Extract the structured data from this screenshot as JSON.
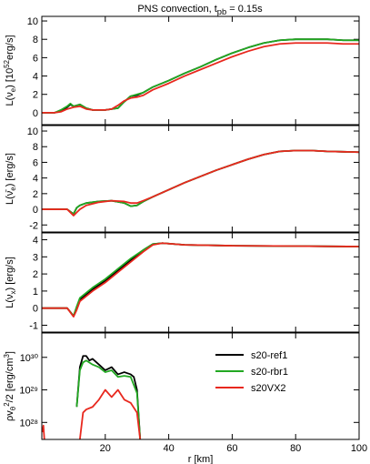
{
  "chart_data": [
    {
      "type": "line",
      "title": [
        {
          "text": "PNS convection, t"
        },
        {
          "text": "pb",
          "sub": true
        },
        {
          "text": " = 0.15s"
        }
      ],
      "ylabel": [
        {
          "text": "L(ν"
        },
        {
          "text": "e",
          "sub": true
        },
        {
          "text": ") [10"
        },
        {
          "text": "52",
          "sup": true
        },
        {
          "text": "erg/s]"
        }
      ],
      "xlim": [
        0,
        100
      ],
      "xticks": [
        20,
        40,
        60,
        80,
        100
      ],
      "ylim": [
        -1.3,
        10.5
      ],
      "yticks": [
        0,
        2,
        4,
        6,
        8,
        10
      ],
      "series": [
        {
          "color": "#000000",
          "x": [
            0,
            4,
            6,
            8,
            9,
            10,
            12,
            14,
            16,
            20,
            24,
            26,
            28,
            30,
            32,
            35,
            40,
            45,
            50,
            55,
            60,
            65,
            70,
            75,
            80,
            85,
            90,
            95,
            100
          ],
          "values": [
            0,
            0,
            0.2,
            0.6,
            0.9,
            0.7,
            0.9,
            0.5,
            0.3,
            0.3,
            0.5,
            1.2,
            1.8,
            1.9,
            2.2,
            2.8,
            3.5,
            4.3,
            5.0,
            5.8,
            6.5,
            7.1,
            7.6,
            7.9,
            8.0,
            8.0,
            8.0,
            7.9,
            7.9
          ]
        },
        {
          "color": "#22a822",
          "x": [
            0,
            4,
            6,
            8,
            9,
            10,
            12,
            14,
            16,
            20,
            24,
            26,
            28,
            30,
            32,
            35,
            40,
            45,
            50,
            55,
            60,
            65,
            70,
            75,
            80,
            85,
            90,
            95,
            100
          ],
          "values": [
            0,
            0,
            0.3,
            0.7,
            1.0,
            0.7,
            0.9,
            0.5,
            0.3,
            0.3,
            0.5,
            1.2,
            1.8,
            2.0,
            2.2,
            2.8,
            3.5,
            4.3,
            5.0,
            5.8,
            6.5,
            7.1,
            7.6,
            7.9,
            8.0,
            8.0,
            8.0,
            7.9,
            7.9
          ]
        },
        {
          "color": "#e8281e",
          "x": [
            0,
            4,
            6,
            8,
            9,
            10,
            12,
            14,
            16,
            20,
            22,
            24,
            26,
            28,
            30,
            32,
            35,
            40,
            45,
            50,
            55,
            60,
            65,
            70,
            75,
            80,
            85,
            90,
            95,
            100
          ],
          "values": [
            0,
            0,
            0.1,
            0.4,
            0.5,
            0.6,
            0.7,
            0.4,
            0.3,
            0.3,
            0.4,
            0.8,
            1.3,
            1.6,
            1.7,
            1.9,
            2.5,
            3.2,
            4.0,
            4.7,
            5.4,
            6.1,
            6.7,
            7.2,
            7.5,
            7.6,
            7.6,
            7.6,
            7.5,
            7.5
          ]
        }
      ]
    },
    {
      "type": "line",
      "ylabel": [
        {
          "text": "L(ν̄"
        },
        {
          "text": "e",
          "sub": true
        },
        {
          "text": ") [erg/s]"
        }
      ],
      "xlim": [
        0,
        100
      ],
      "xticks": [
        20,
        40,
        60,
        80,
        100
      ],
      "ylim": [
        -2.9,
        10.7
      ],
      "yticks": [
        -2,
        0,
        2,
        4,
        6,
        8,
        10
      ],
      "series": [
        {
          "color": "#000000",
          "x": [
            0,
            8,
            10,
            11,
            12,
            14,
            18,
            22,
            26,
            28,
            30,
            32,
            35,
            40,
            45,
            50,
            55,
            60,
            65,
            70,
            75,
            80,
            85,
            90,
            100
          ],
          "values": [
            0,
            0,
            -0.6,
            0.2,
            0.5,
            0.8,
            1.0,
            1.1,
            0.8,
            0.4,
            0.5,
            1.0,
            1.6,
            2.5,
            3.4,
            4.2,
            5.0,
            5.7,
            6.4,
            7.0,
            7.4,
            7.5,
            7.5,
            7.4,
            7.3
          ]
        },
        {
          "color": "#22a822",
          "x": [
            0,
            8,
            10,
            11,
            12,
            14,
            18,
            22,
            26,
            28,
            30,
            32,
            35,
            40,
            45,
            50,
            55,
            60,
            65,
            70,
            75,
            80,
            85,
            90,
            100
          ],
          "values": [
            0,
            0,
            -0.6,
            0.2,
            0.5,
            0.8,
            1.0,
            1.1,
            0.8,
            0.4,
            0.5,
            1.0,
            1.6,
            2.5,
            3.4,
            4.2,
            5.0,
            5.7,
            6.4,
            7.0,
            7.4,
            7.5,
            7.5,
            7.4,
            7.3
          ]
        },
        {
          "color": "#e8281e",
          "x": [
            0,
            8,
            10,
            11,
            12,
            14,
            18,
            22,
            26,
            28,
            30,
            32,
            35,
            40,
            45,
            50,
            55,
            60,
            65,
            70,
            75,
            80,
            85,
            90,
            100
          ],
          "values": [
            0,
            0,
            -0.8,
            -0.4,
            0,
            0.5,
            0.9,
            1.1,
            1.0,
            0.8,
            0.8,
            1.1,
            1.6,
            2.5,
            3.4,
            4.2,
            5.0,
            5.7,
            6.4,
            7.0,
            7.4,
            7.5,
            7.5,
            7.4,
            7.3
          ]
        }
      ]
    },
    {
      "type": "line",
      "ylabel": [
        {
          "text": "L(ν"
        },
        {
          "text": "x",
          "sub": true
        },
        {
          "text": ") [erg/s]"
        }
      ],
      "xlim": [
        0,
        100
      ],
      "xticks": [
        20,
        40,
        60,
        80,
        100
      ],
      "ylim": [
        -1.4,
        4.4
      ],
      "yticks": [
        -1,
        0,
        1,
        2,
        3,
        4
      ],
      "series": [
        {
          "color": "#000000",
          "x": [
            0,
            8,
            10,
            11,
            12,
            14,
            16,
            20,
            24,
            28,
            32,
            35,
            38,
            45,
            60,
            80,
            100
          ],
          "values": [
            0,
            0,
            -0.45,
            0,
            0.5,
            0.8,
            1.1,
            1.6,
            2.2,
            2.8,
            3.4,
            3.75,
            3.8,
            3.7,
            3.65,
            3.63,
            3.6
          ]
        },
        {
          "color": "#22a822",
          "x": [
            0,
            8,
            10,
            11,
            12,
            14,
            16,
            20,
            24,
            28,
            32,
            35,
            38,
            45,
            60,
            80,
            100
          ],
          "values": [
            0,
            0,
            -0.45,
            0.1,
            0.6,
            0.9,
            1.2,
            1.7,
            2.3,
            2.9,
            3.4,
            3.75,
            3.8,
            3.7,
            3.65,
            3.63,
            3.6
          ]
        },
        {
          "color": "#e8281e",
          "x": [
            0,
            8,
            10,
            11,
            12,
            14,
            16,
            20,
            24,
            28,
            32,
            35,
            38,
            45,
            60,
            80,
            100
          ],
          "values": [
            0,
            0,
            -0.5,
            -0.1,
            0.4,
            0.7,
            1.0,
            1.5,
            2.1,
            2.7,
            3.3,
            3.7,
            3.8,
            3.7,
            3.65,
            3.63,
            3.6
          ]
        }
      ]
    },
    {
      "type": "line",
      "ylabel": [
        {
          "text": "ρv"
        },
        {
          "text": "θ",
          "sub": true
        },
        {
          "text": "2",
          "sup": true
        },
        {
          "text": "/2 [erg/cm"
        },
        {
          "text": "3",
          "sup": true
        },
        {
          "text": "]"
        }
      ],
      "xlabel": "r [km]",
      "xlim": [
        0,
        100
      ],
      "xticks": [
        20,
        40,
        60,
        80,
        100
      ],
      "ylim": [
        3e+27,
        5.6e+30
      ],
      "yscale": "log",
      "yticks": [
        {
          "value": 1e+28,
          "label": "10²⁸"
        },
        {
          "value": 1e+29,
          "label": "10²⁹"
        },
        {
          "value": 1e+30,
          "label": "10³⁰"
        }
      ],
      "legend": "upper center",
      "series": [
        {
          "name": "s20-ref1",
          "color": "#000000",
          "x": [
            11,
            12,
            13,
            14,
            15,
            16,
            18,
            20,
            22,
            24,
            26,
            28,
            29,
            30,
            31
          ],
          "values": [
            3e+28,
            5e+29,
            1.1e+30,
            1.1e+30,
            8e+29,
            9e+29,
            6e+29,
            4e+29,
            5e+29,
            3e+29,
            3.5e+29,
            3e+29,
            2.5e+29,
            1e+29,
            3e+27
          ]
        },
        {
          "name": "s20-rbr1",
          "color": "#22a822",
          "x": [
            11,
            12,
            13,
            14,
            16,
            18,
            20,
            22,
            24,
            26,
            28,
            30,
            31
          ],
          "values": [
            3e+28,
            4e+29,
            7e+29,
            8e+29,
            6e+29,
            5e+29,
            3.5e+29,
            4e+29,
            2.5e+29,
            2.7e+29,
            2.5e+29,
            8e+28,
            3e+27
          ]
        },
        {
          "name": "s20VX2",
          "color": "#e8281e",
          "x": [
            0.2,
            0.5,
            0.8,
            5,
            12,
            13,
            14,
            16,
            18,
            20,
            22,
            24,
            26,
            28,
            30,
            31
          ],
          "values": [
            5e+27,
            8e+27,
            3e+27,
            null,
            3e+27,
            2e+28,
            2.5e+28,
            3e+28,
            5e+28,
            1e+29,
            6e+28,
            1e+29,
            5e+28,
            4e+28,
            2e+28,
            3e+27
          ]
        }
      ]
    }
  ]
}
